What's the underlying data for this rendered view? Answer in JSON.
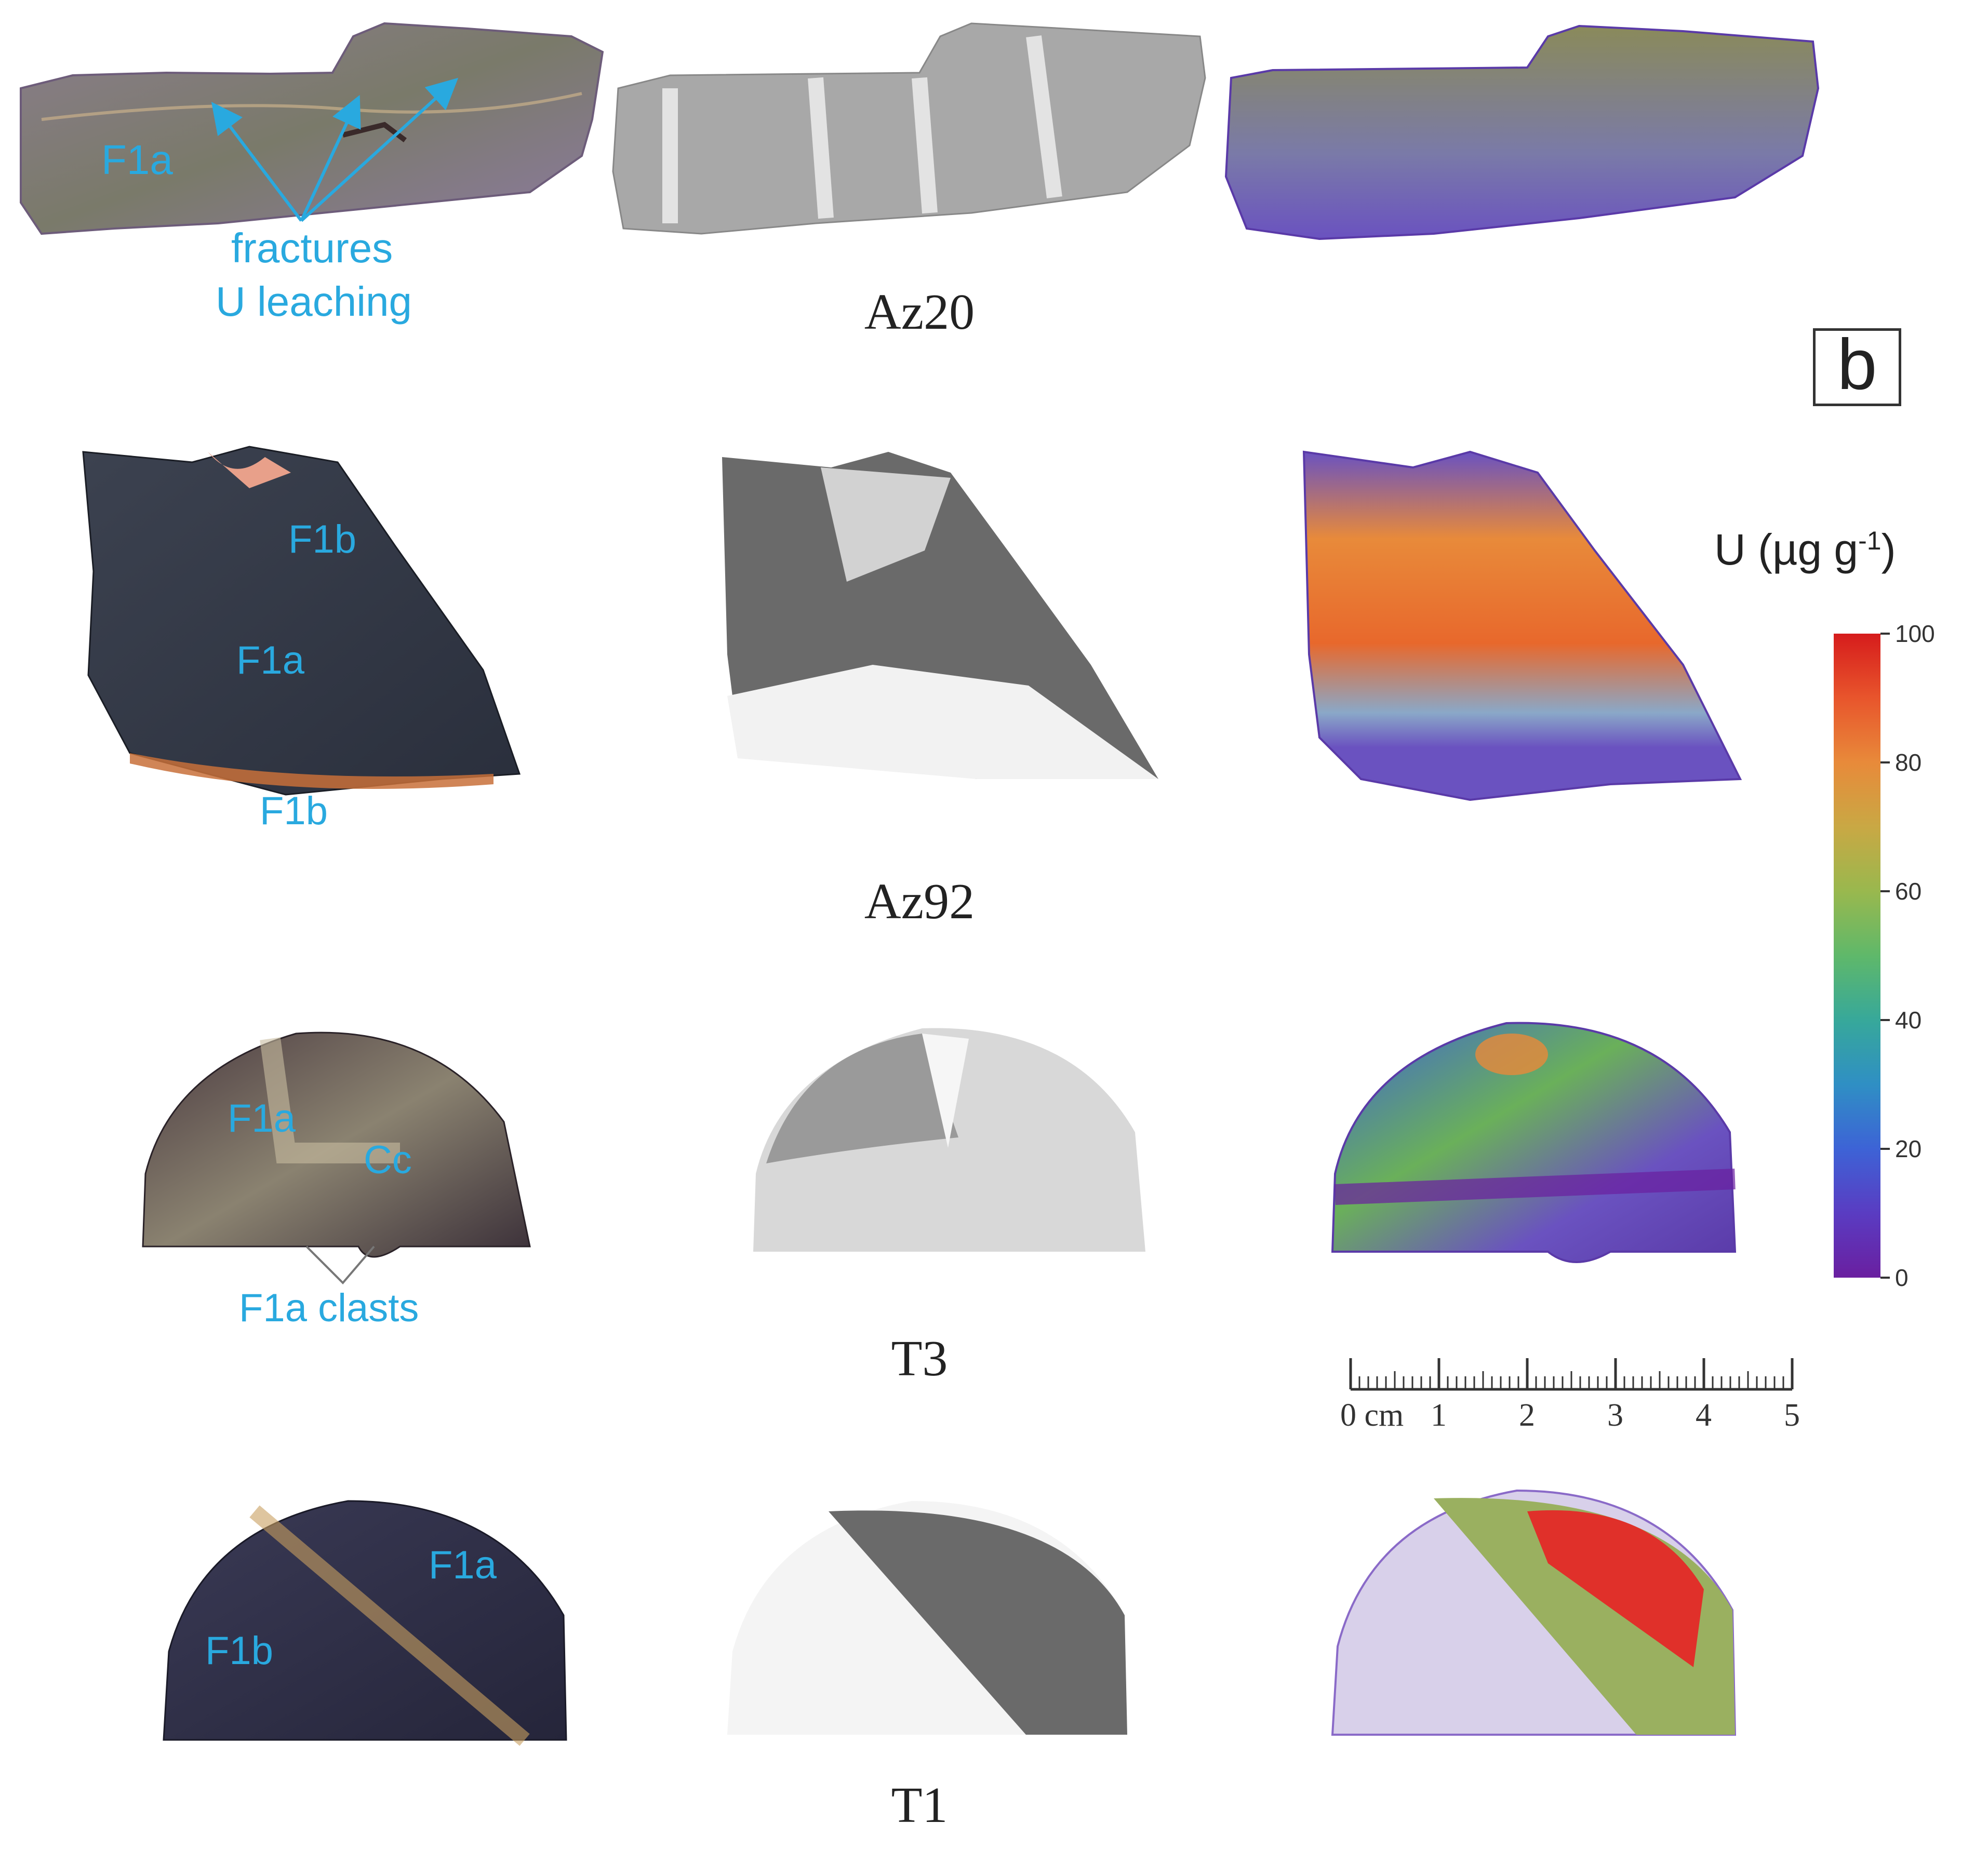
{
  "panel_letter": "b",
  "samples": [
    {
      "name": "Az20"
    },
    {
      "name": "Az92"
    },
    {
      "name": "T3"
    },
    {
      "name": "T1"
    }
  ],
  "annotations": {
    "az20_f1a": "F1a",
    "az20_fractures": "fractures",
    "az20_u_leaching": "U leaching",
    "az92_f1b_top": "F1b",
    "az92_f1a": "F1a",
    "az92_f1b_bottom": "F1b",
    "t3_f1a": "F1a",
    "t3_cc": "Cc",
    "t3_f1a_clasts": "F1a clasts",
    "t1_f1a": "F1a",
    "t1_f1b": "F1b"
  },
  "colorbar": {
    "title": "U (µg g",
    "title_sup": "-1",
    "title_end": ")",
    "ticks": [
      "100",
      "80",
      "60",
      "40",
      "20",
      "0"
    ],
    "colors": [
      "#6a1fa0",
      "#3d63d6",
      "#37a89a",
      "#99b84e",
      "#e88a3a",
      "#d61c1c"
    ]
  },
  "scale_bar": {
    "label_zero": "0 cm",
    "labels": [
      "1",
      "2",
      "3",
      "4",
      "5"
    ]
  }
}
